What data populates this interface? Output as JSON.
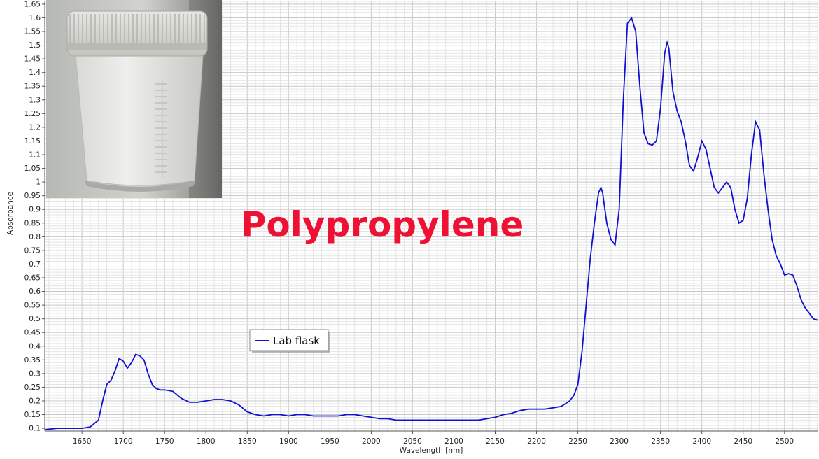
{
  "chart_data": {
    "type": "line",
    "title": "Polypropylene",
    "xlabel": "Wavelength [nm]",
    "ylabel": "Absorbance",
    "xlim": [
      1605,
      2540
    ],
    "ylim": [
      0.09,
      1.66
    ],
    "xticks": [
      1650,
      1700,
      1750,
      1800,
      1850,
      1900,
      1950,
      2000,
      2050,
      2100,
      2150,
      2200,
      2250,
      2300,
      2350,
      2400,
      2450,
      2500
    ],
    "yticks": [
      "0.1",
      "0.15",
      "0.2",
      "0.25",
      "0.3",
      "0.35",
      "0.4",
      "0.45",
      "0.5",
      "0.55",
      "0.6",
      "0.65",
      "0.7",
      "0.75",
      "0.8",
      "0.85",
      "0.9",
      "0.95",
      "1",
      "1.05",
      "1.1",
      "1.15",
      "1.2",
      "1.25",
      "1.3",
      "1.35",
      "1.4",
      "1.45",
      "1.5",
      "1.55",
      "1.6",
      "1.65"
    ],
    "grid": true,
    "legend_position": "center-left",
    "series": [
      {
        "name": "Lab flask",
        "color": "#1010d0",
        "x": [
          1605,
          1620,
          1630,
          1650,
          1660,
          1670,
          1675,
          1680,
          1685,
          1690,
          1695,
          1700,
          1705,
          1710,
          1715,
          1720,
          1725,
          1730,
          1735,
          1740,
          1745,
          1750,
          1760,
          1770,
          1780,
          1790,
          1800,
          1810,
          1820,
          1830,
          1840,
          1850,
          1860,
          1870,
          1880,
          1890,
          1900,
          1910,
          1920,
          1930,
          1940,
          1950,
          1960,
          1970,
          1980,
          1990,
          2000,
          2010,
          2020,
          2030,
          2040,
          2050,
          2060,
          2070,
          2080,
          2090,
          2100,
          2110,
          2120,
          2130,
          2140,
          2150,
          2160,
          2170,
          2180,
          2190,
          2200,
          2210,
          2220,
          2230,
          2240,
          2245,
          2250,
          2255,
          2260,
          2265,
          2270,
          2275,
          2278,
          2280,
          2285,
          2290,
          2295,
          2300,
          2305,
          2310,
          2315,
          2320,
          2325,
          2330,
          2335,
          2340,
          2345,
          2350,
          2355,
          2358,
          2360,
          2365,
          2370,
          2375,
          2380,
          2385,
          2390,
          2395,
          2400,
          2405,
          2410,
          2415,
          2420,
          2425,
          2430,
          2435,
          2440,
          2445,
          2450,
          2455,
          2460,
          2465,
          2470,
          2475,
          2480,
          2485,
          2490,
          2495,
          2500,
          2505,
          2510,
          2515,
          2520,
          2525,
          2530,
          2535,
          2540
        ],
        "values": [
          0.095,
          0.1,
          0.1,
          0.1,
          0.105,
          0.13,
          0.2,
          0.26,
          0.275,
          0.31,
          0.355,
          0.345,
          0.32,
          0.34,
          0.37,
          0.365,
          0.35,
          0.3,
          0.26,
          0.245,
          0.24,
          0.24,
          0.235,
          0.21,
          0.195,
          0.195,
          0.2,
          0.205,
          0.205,
          0.2,
          0.185,
          0.16,
          0.15,
          0.145,
          0.15,
          0.15,
          0.145,
          0.15,
          0.15,
          0.145,
          0.145,
          0.145,
          0.145,
          0.15,
          0.15,
          0.145,
          0.14,
          0.135,
          0.135,
          0.13,
          0.13,
          0.13,
          0.13,
          0.13,
          0.13,
          0.13,
          0.13,
          0.13,
          0.13,
          0.13,
          0.135,
          0.14,
          0.15,
          0.155,
          0.165,
          0.17,
          0.17,
          0.17,
          0.175,
          0.18,
          0.2,
          0.22,
          0.26,
          0.38,
          0.55,
          0.72,
          0.85,
          0.96,
          0.98,
          0.96,
          0.85,
          0.79,
          0.77,
          0.9,
          1.3,
          1.58,
          1.6,
          1.55,
          1.35,
          1.18,
          1.14,
          1.135,
          1.15,
          1.27,
          1.47,
          1.51,
          1.49,
          1.33,
          1.26,
          1.22,
          1.15,
          1.06,
          1.04,
          1.09,
          1.15,
          1.12,
          1.05,
          0.98,
          0.96,
          0.98,
          1.0,
          0.98,
          0.9,
          0.85,
          0.86,
          0.94,
          1.1,
          1.22,
          1.19,
          1.03,
          0.9,
          0.79,
          0.73,
          0.7,
          0.66,
          0.665,
          0.66,
          0.62,
          0.57,
          0.54,
          0.52,
          0.5,
          0.495
        ]
      }
    ]
  },
  "inset_photo": {
    "subject": "plastic-sample-jar-photo"
  }
}
